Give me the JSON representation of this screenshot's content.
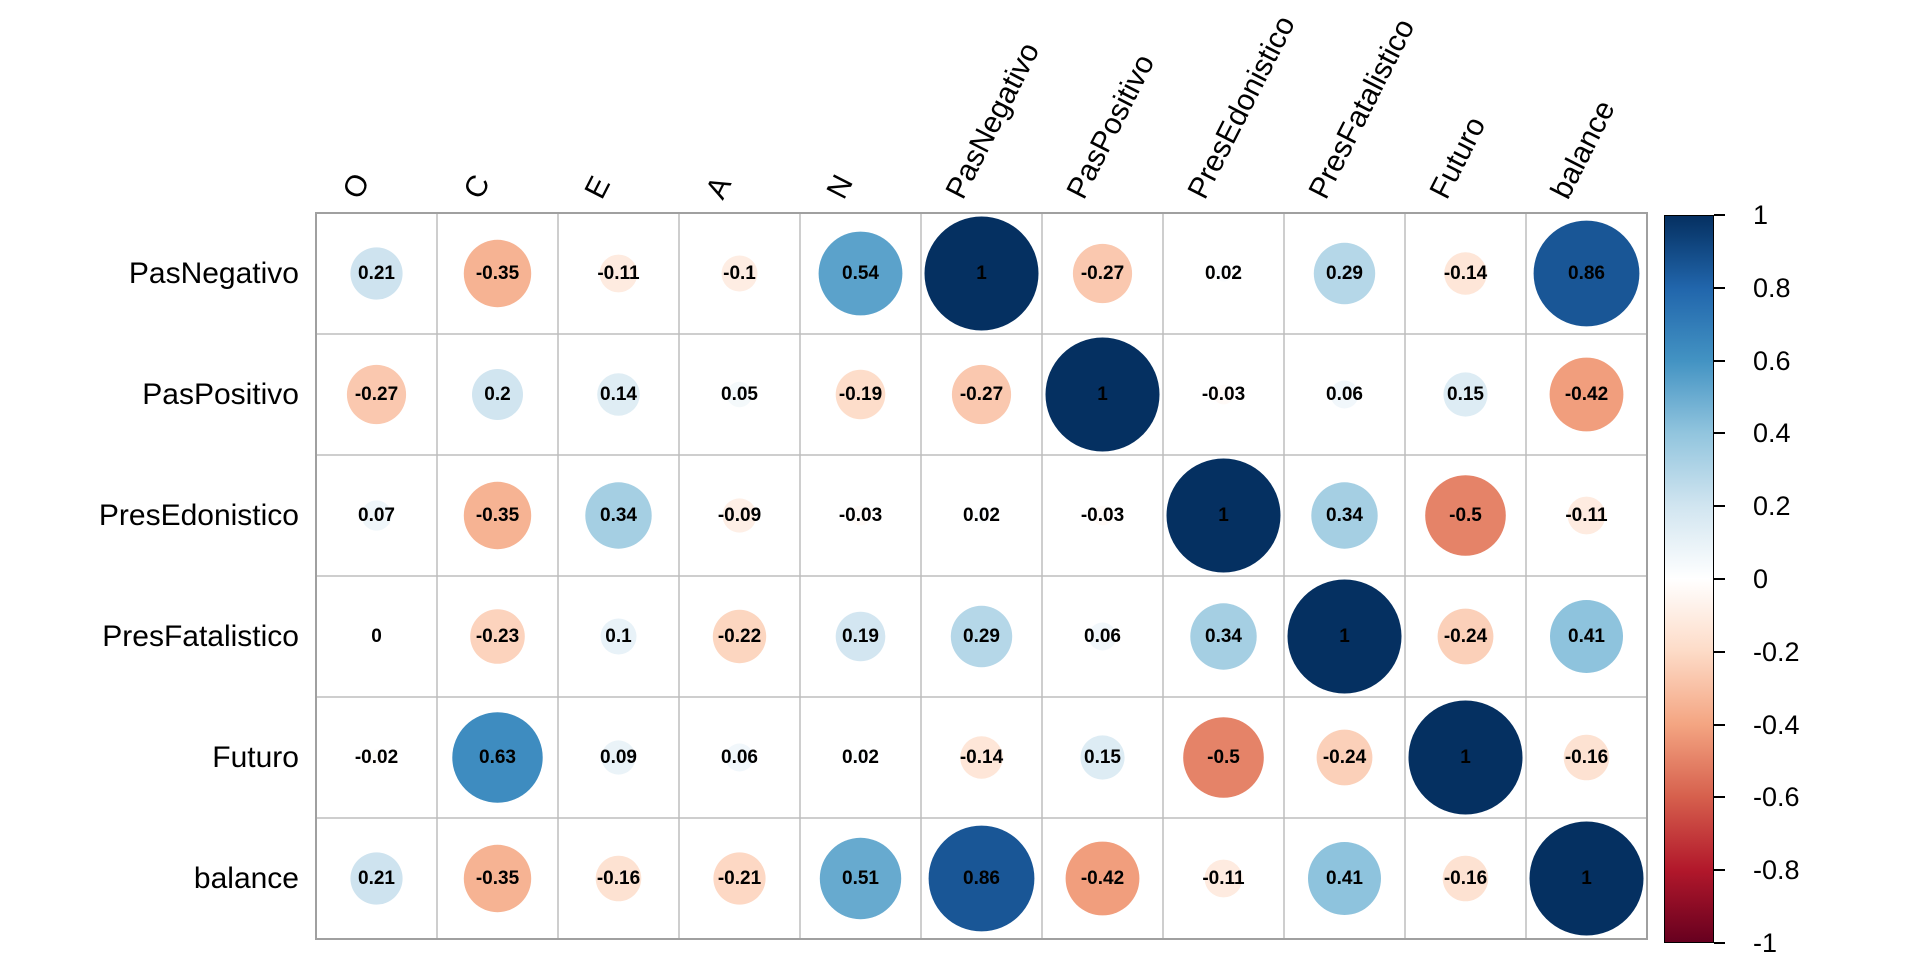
{
  "chart_data": {
    "type": "heatmap",
    "subtype": "correlation-matrix-circles",
    "title": "",
    "columns": [
      "O",
      "C",
      "E",
      "A",
      "N",
      "PasNegativo",
      "PasPositivo",
      "PresEdonistico",
      "PresFatalistico",
      "Futuro",
      "balance"
    ],
    "rows": [
      "PasNegativo",
      "PasPositivo",
      "PresEdonistico",
      "PresFatalistico",
      "Futuro",
      "balance"
    ],
    "matrix": [
      [
        0.21,
        -0.35,
        -0.11,
        -0.1,
        0.54,
        1,
        -0.27,
        0.02,
        0.29,
        -0.14,
        0.86
      ],
      [
        -0.27,
        0.2,
        0.14,
        0.05,
        -0.19,
        -0.27,
        1,
        -0.03,
        0.06,
        0.15,
        -0.42
      ],
      [
        0.07,
        -0.35,
        0.34,
        -0.09,
        -0.03,
        0.02,
        -0.03,
        1,
        0.34,
        -0.5,
        -0.11
      ],
      [
        0,
        -0.23,
        0.1,
        -0.22,
        0.19,
        0.29,
        0.06,
        0.34,
        1,
        -0.24,
        0.41
      ],
      [
        -0.02,
        0.63,
        0.09,
        0.06,
        0.02,
        -0.14,
        0.15,
        -0.5,
        -0.24,
        1,
        -0.16
      ],
      [
        0.21,
        -0.35,
        -0.16,
        -0.21,
        0.51,
        0.86,
        -0.42,
        -0.11,
        0.41,
        -0.16,
        1
      ]
    ],
    "value_range": [
      -1,
      1
    ],
    "legend_position": "right",
    "grid_on": true,
    "colorbar": {
      "tick_labels": [
        "1",
        "0.8",
        "0.6",
        "0.4",
        "0.2",
        "0",
        "-0.2",
        "-0.4",
        "-0.6",
        "-0.8",
        "-1"
      ],
      "top_value": 1,
      "bottom_value": -1
    },
    "colors": {
      "palette_stops_neg_to_pos": [
        "#67001F",
        "#B2182B",
        "#D6604D",
        "#F4A582",
        "#FDDBC7",
        "#FFFFFF",
        "#D1E5F0",
        "#92C5DE",
        "#4393C3",
        "#2166AC",
        "#053061"
      ],
      "negative_end": "#67001F",
      "zero": "#FFFFFF",
      "positive_end": "#053061",
      "inner_grid_line": "#bdbdbd",
      "outer_border": "#a0a0a0",
      "value_text": "#000000",
      "background": "#ffffff"
    }
  }
}
